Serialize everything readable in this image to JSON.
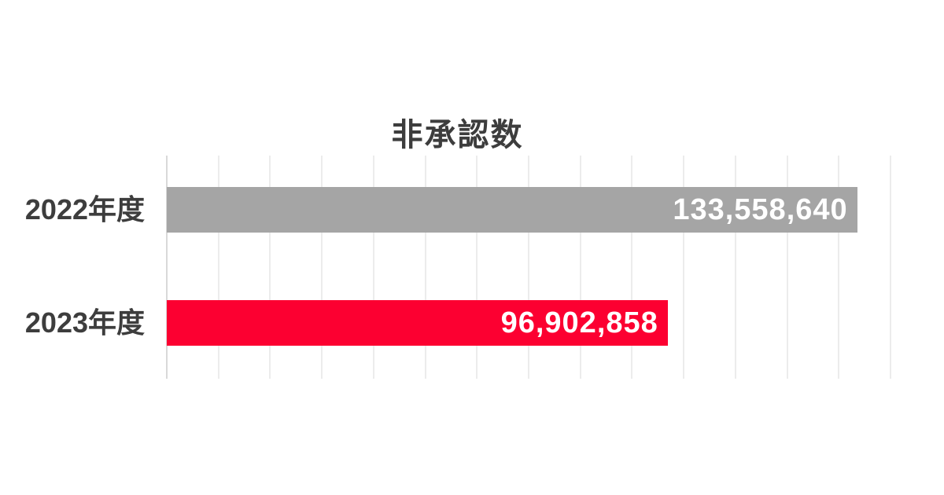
{
  "chart_data": {
    "type": "bar",
    "orientation": "horizontal",
    "title": "非承認数",
    "categories": [
      "2022年度",
      "2023年度"
    ],
    "values": [
      133558640,
      96902858
    ],
    "value_labels": [
      "133,558,640",
      "96,902,858"
    ],
    "series_colors": [
      "#a5a5a5",
      "#fc0031"
    ],
    "xlim": [
      0,
      140000000
    ],
    "gridline_step": 10000000,
    "grid": true,
    "legend_position": "none",
    "xlabel": "",
    "ylabel": "",
    "colors": {
      "background": "#ffffff",
      "title_text": "#3d3d3d",
      "category_text": "#3d3d3d",
      "value_text": "#ffffff",
      "gridline": "#ececec",
      "axis_line": "#d9d9d9"
    }
  }
}
